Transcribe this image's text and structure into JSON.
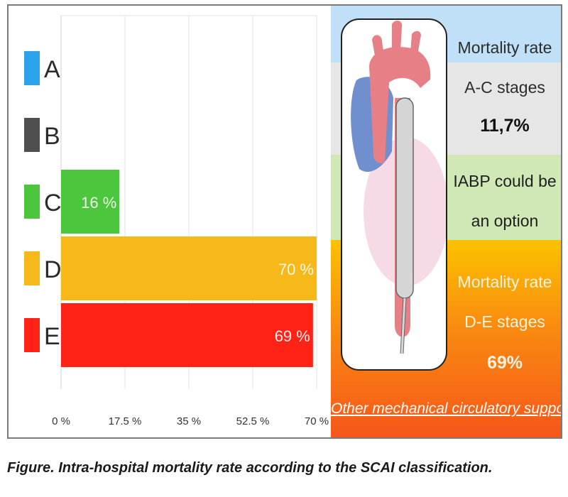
{
  "chart_data": {
    "type": "bar",
    "orientation": "horizontal",
    "categories": [
      "A",
      "B",
      "C",
      "D",
      "E"
    ],
    "values": [
      null,
      null,
      16,
      70,
      69
    ],
    "value_labels": [
      "",
      "",
      "16 %",
      "70 %",
      "69 %"
    ],
    "colors": [
      "#2aa3ea",
      "#4f4f4f",
      "#4cc63c",
      "#f7b81a",
      "#ff2317"
    ],
    "xlim": [
      0,
      70
    ],
    "x_ticks": [
      0,
      17.5,
      35,
      52.5,
      70
    ],
    "x_tick_labels": [
      "0 %",
      "17.5 %",
      "35 %",
      "52.5 %",
      "70 %"
    ],
    "grid": true,
    "legend": "left"
  },
  "panel": {
    "mortality_ac_line1": "Mortality rate",
    "mortality_ac_line2": "A-C stages",
    "mortality_ac_value": "11,7%",
    "iabp_line1": "IABP could be",
    "iabp_line2": "an option",
    "mortality_de_line1": "Mortality rate",
    "mortality_de_line2": "D-E stages",
    "mortality_de_value": "69%",
    "other_mcs": "Other mechanical circulatory supports?"
  },
  "caption": "Figure. Intra-hospital mortality rate according to the SCAI classification."
}
